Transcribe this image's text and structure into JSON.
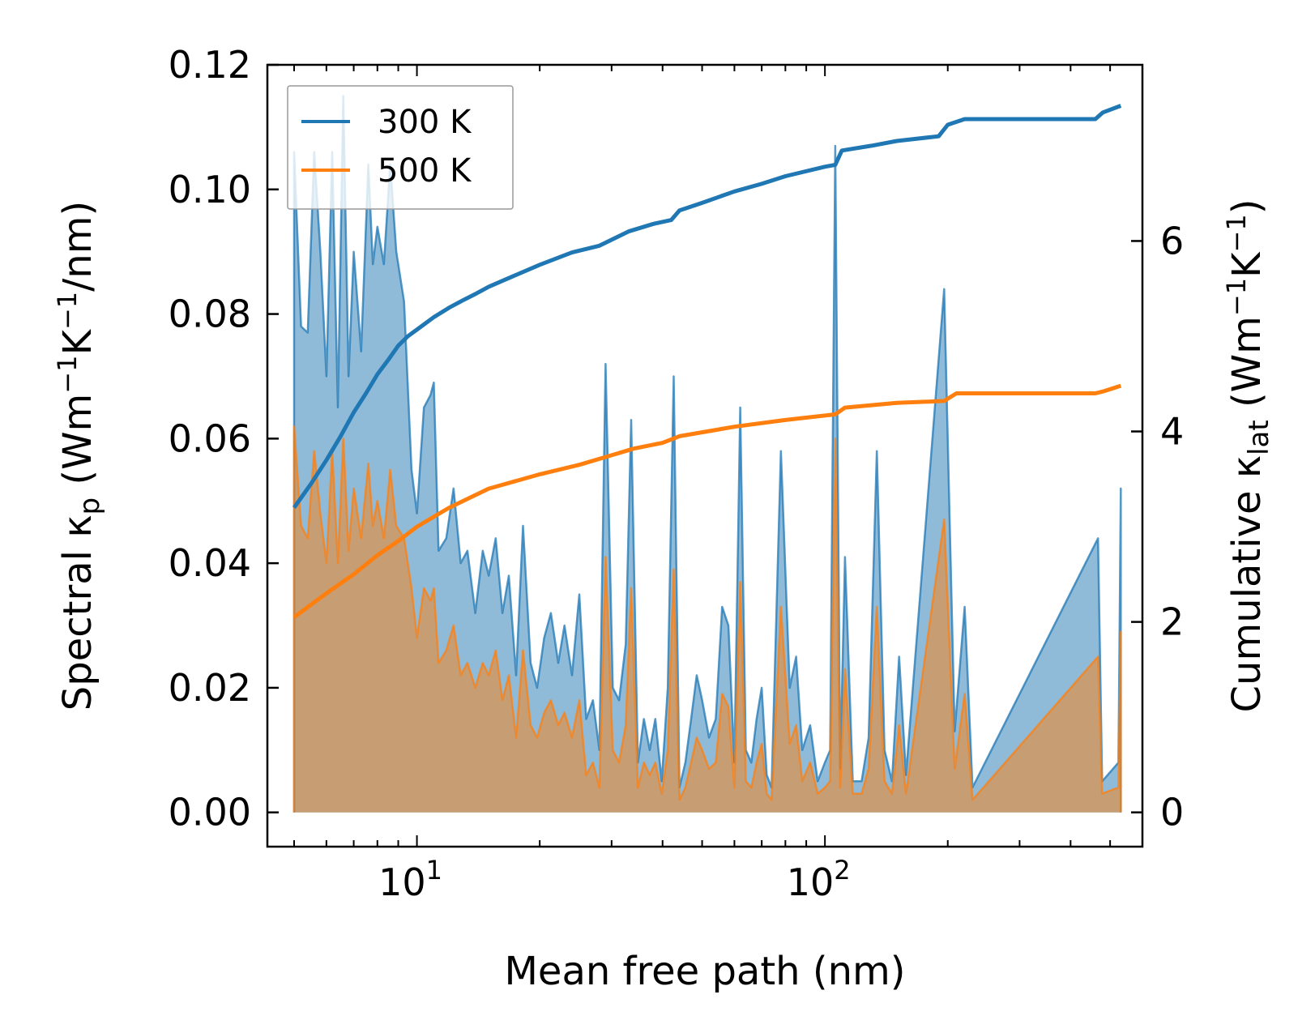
{
  "chart_data": {
    "type": "line",
    "title": "",
    "xlabel": "Mean free path (nm)",
    "xscale": "log",
    "xlim": [
      4.3,
      600
    ],
    "x_tick_labels": [
      {
        "base": "10",
        "exp": "1",
        "value": 10
      },
      {
        "base": "10",
        "exp": "2",
        "value": 100
      }
    ],
    "ylabel_left": {
      "main": "Spectral κ",
      "sub": "p",
      "unit_prefix": " (Wm",
      "sup1": "−1",
      "unit_mid": "K",
      "sup2": "−1",
      "unit_suffix": "/nm)"
    },
    "ylim_left": [
      -0.0055,
      0.12
    ],
    "y_ticks_left": [
      "0.00",
      "0.02",
      "0.04",
      "0.06",
      "0.08",
      "0.10",
      "0.12"
    ],
    "y_ticks_left_values": [
      0,
      0.02,
      0.04,
      0.06,
      0.08,
      0.1,
      0.12
    ],
    "ylabel_right": {
      "main": "Cumulative κ",
      "sub": "lat",
      "unit_prefix": " (Wm",
      "sup1": "−1",
      "unit_mid": "K",
      "sup2": "−1",
      "unit_suffix": ")"
    },
    "ylim_right": [
      -0.36,
      7.85
    ],
    "y_ticks_right": [
      "0",
      "2",
      "4",
      "6"
    ],
    "y_ticks_right_values": [
      0,
      2,
      4,
      6
    ],
    "legend": {
      "placement": "top-left",
      "entries": [
        "300 K",
        "500 K"
      ]
    },
    "colors": {
      "300 K": "#1f77b4",
      "500 K": "#ff7f0e",
      "fill_300": "#1f77b4",
      "fill_500": "#ff7f0e"
    },
    "spectral": [
      {
        "name": "300 K",
        "axis": "left",
        "points": [
          [
            5.0,
            0
          ],
          [
            5.0,
            0.106
          ],
          [
            5.2,
            0.078
          ],
          [
            5.4,
            0.077
          ],
          [
            5.6,
            0.106
          ],
          [
            5.8,
            0.09
          ],
          [
            6.0,
            0.07
          ],
          [
            6.2,
            0.106
          ],
          [
            6.4,
            0.065
          ],
          [
            6.6,
            0.115
          ],
          [
            6.8,
            0.07
          ],
          [
            7.0,
            0.09
          ],
          [
            7.3,
            0.074
          ],
          [
            7.6,
            0.104
          ],
          [
            7.8,
            0.088
          ],
          [
            8.0,
            0.094
          ],
          [
            8.3,
            0.088
          ],
          [
            8.6,
            0.104
          ],
          [
            8.9,
            0.09
          ],
          [
            9.3,
            0.082
          ],
          [
            9.7,
            0.055
          ],
          [
            10.0,
            0.048
          ],
          [
            10.4,
            0.065
          ],
          [
            10.8,
            0.067
          ],
          [
            11.0,
            0.069
          ],
          [
            11.3,
            0.042
          ],
          [
            11.8,
            0.044
          ],
          [
            12.3,
            0.052
          ],
          [
            12.8,
            0.04
          ],
          [
            13.3,
            0.042
          ],
          [
            13.9,
            0.032
          ],
          [
            14.5,
            0.042
          ],
          [
            15.0,
            0.038
          ],
          [
            15.6,
            0.044
          ],
          [
            16.2,
            0.032
          ],
          [
            16.8,
            0.038
          ],
          [
            17.5,
            0.022
          ],
          [
            18.2,
            0.046
          ],
          [
            19.0,
            0.024
          ],
          [
            19.7,
            0.02
          ],
          [
            20.5,
            0.028
          ],
          [
            21.3,
            0.032
          ],
          [
            22.2,
            0.024
          ],
          [
            23.0,
            0.03
          ],
          [
            24.0,
            0.022
          ],
          [
            25.0,
            0.035
          ],
          [
            26.0,
            0.015
          ],
          [
            27.0,
            0.018
          ],
          [
            28.0,
            0.01
          ],
          [
            29.0,
            0.072
          ],
          [
            30.2,
            0.02
          ],
          [
            31.3,
            0.018
          ],
          [
            32.5,
            0.027
          ],
          [
            33.5,
            0.063
          ],
          [
            34.8,
            0.008
          ],
          [
            36.0,
            0.015
          ],
          [
            37.2,
            0.01
          ],
          [
            38.4,
            0.015
          ],
          [
            39.8,
            0.005
          ],
          [
            41.2,
            0.02
          ],
          [
            42.6,
            0.07
          ],
          [
            44.0,
            0.004
          ],
          [
            45.5,
            0.008
          ],
          [
            47.0,
            0.015
          ],
          [
            48.5,
            0.022
          ],
          [
            50.0,
            0.018
          ],
          [
            52.0,
            0.012
          ],
          [
            54.0,
            0.015
          ],
          [
            56.0,
            0.033
          ],
          [
            58.0,
            0.03
          ],
          [
            60.0,
            0.008
          ],
          [
            62.0,
            0.065
          ],
          [
            64.0,
            0.01
          ],
          [
            66.0,
            0.008
          ],
          [
            68.0,
            0.015
          ],
          [
            70.0,
            0.02
          ],
          [
            72.0,
            0.006
          ],
          [
            74.0,
            0.004
          ],
          [
            78.0,
            0.058
          ],
          [
            82.0,
            0.02
          ],
          [
            85.0,
            0.025
          ],
          [
            88.0,
            0.01
          ],
          [
            92.0,
            0.014
          ],
          [
            96.0,
            0.005
          ],
          [
            100.0,
            0.008
          ],
          [
            103.0,
            0.01
          ],
          [
            106.0,
            0.107
          ],
          [
            109.0,
            0.007
          ],
          [
            112.0,
            0.041
          ],
          [
            117.0,
            0.005
          ],
          [
            123.0,
            0.005
          ],
          [
            128.0,
            0.012
          ],
          [
            134.0,
            0.058
          ],
          [
            140.0,
            0.01
          ],
          [
            146.0,
            0.005
          ],
          [
            152.0,
            0.025
          ],
          [
            158.0,
            0.006
          ],
          [
            196.0,
            0.084
          ],
          [
            208.0,
            0.013
          ],
          [
            220.0,
            0.033
          ],
          [
            230.0,
            0.004
          ],
          [
            467.0,
            0.044
          ],
          [
            478.0,
            0.005
          ],
          [
            524.0,
            0.008
          ],
          [
            531.0,
            0.052
          ],
          [
            531.0,
            0
          ]
        ]
      },
      {
        "name": "500 K",
        "axis": "left",
        "points": [
          [
            5.0,
            0
          ],
          [
            5.0,
            0.062
          ],
          [
            5.2,
            0.046
          ],
          [
            5.4,
            0.044
          ],
          [
            5.6,
            0.058
          ],
          [
            5.8,
            0.048
          ],
          [
            6.0,
            0.04
          ],
          [
            6.2,
            0.058
          ],
          [
            6.4,
            0.04
          ],
          [
            6.6,
            0.06
          ],
          [
            6.8,
            0.042
          ],
          [
            7.0,
            0.052
          ],
          [
            7.3,
            0.044
          ],
          [
            7.6,
            0.056
          ],
          [
            7.8,
            0.046
          ],
          [
            8.0,
            0.05
          ],
          [
            8.3,
            0.044
          ],
          [
            8.6,
            0.055
          ],
          [
            8.9,
            0.046
          ],
          [
            9.3,
            0.044
          ],
          [
            9.7,
            0.036
          ],
          [
            10.0,
            0.028
          ],
          [
            10.4,
            0.036
          ],
          [
            10.8,
            0.034
          ],
          [
            11.0,
            0.036
          ],
          [
            11.3,
            0.024
          ],
          [
            11.8,
            0.026
          ],
          [
            12.3,
            0.03
          ],
          [
            12.8,
            0.022
          ],
          [
            13.3,
            0.024
          ],
          [
            13.9,
            0.02
          ],
          [
            14.5,
            0.024
          ],
          [
            15.0,
            0.022
          ],
          [
            15.6,
            0.026
          ],
          [
            16.2,
            0.018
          ],
          [
            16.8,
            0.022
          ],
          [
            17.5,
            0.012
          ],
          [
            18.2,
            0.026
          ],
          [
            19.0,
            0.014
          ],
          [
            19.7,
            0.012
          ],
          [
            20.5,
            0.016
          ],
          [
            21.3,
            0.018
          ],
          [
            22.2,
            0.014
          ],
          [
            23.0,
            0.016
          ],
          [
            24.0,
            0.012
          ],
          [
            25.0,
            0.018
          ],
          [
            26.0,
            0.006
          ],
          [
            27.0,
            0.008
          ],
          [
            28.0,
            0.004
          ],
          [
            29.0,
            0.041
          ],
          [
            30.2,
            0.01
          ],
          [
            31.3,
            0.008
          ],
          [
            32.5,
            0.014
          ],
          [
            33.5,
            0.036
          ],
          [
            34.8,
            0.004
          ],
          [
            36.0,
            0.008
          ],
          [
            37.2,
            0.006
          ],
          [
            38.4,
            0.008
          ],
          [
            39.8,
            0.003
          ],
          [
            41.2,
            0.01
          ],
          [
            42.6,
            0.039
          ],
          [
            44.0,
            0.002
          ],
          [
            45.5,
            0.004
          ],
          [
            47.0,
            0.008
          ],
          [
            48.5,
            0.012
          ],
          [
            50.0,
            0.01
          ],
          [
            52.0,
            0.007
          ],
          [
            54.0,
            0.008
          ],
          [
            56.0,
            0.019
          ],
          [
            58.0,
            0.017
          ],
          [
            60.0,
            0.004
          ],
          [
            62.0,
            0.037
          ],
          [
            64.0,
            0.005
          ],
          [
            66.0,
            0.004
          ],
          [
            68.0,
            0.008
          ],
          [
            70.0,
            0.011
          ],
          [
            72.0,
            0.003
          ],
          [
            74.0,
            0.002
          ],
          [
            78.0,
            0.033
          ],
          [
            82.0,
            0.011
          ],
          [
            85.0,
            0.014
          ],
          [
            88.0,
            0.005
          ],
          [
            92.0,
            0.008
          ],
          [
            96.0,
            0.003
          ],
          [
            100.0,
            0.004
          ],
          [
            103.0,
            0.005
          ],
          [
            106.0,
            0.06
          ],
          [
            109.0,
            0.004
          ],
          [
            112.0,
            0.023
          ],
          [
            117.0,
            0.003
          ],
          [
            123.0,
            0.003
          ],
          [
            128.0,
            0.007
          ],
          [
            134.0,
            0.033
          ],
          [
            140.0,
            0.005
          ],
          [
            146.0,
            0.003
          ],
          [
            152.0,
            0.014
          ],
          [
            158.0,
            0.003
          ],
          [
            196.0,
            0.047
          ],
          [
            208.0,
            0.007
          ],
          [
            220.0,
            0.019
          ],
          [
            230.0,
            0.002
          ],
          [
            467.0,
            0.025
          ],
          [
            478.0,
            0.003
          ],
          [
            524.0,
            0.004
          ],
          [
            531.0,
            0.029
          ],
          [
            531.0,
            0
          ]
        ]
      }
    ],
    "cumulative": [
      {
        "name": "300 K",
        "axis": "right",
        "points": [
          [
            5.0,
            3.2
          ],
          [
            5.5,
            3.45
          ],
          [
            6.0,
            3.7
          ],
          [
            6.5,
            3.95
          ],
          [
            7.0,
            4.2
          ],
          [
            7.5,
            4.4
          ],
          [
            8.0,
            4.6
          ],
          [
            8.5,
            4.75
          ],
          [
            9.0,
            4.9
          ],
          [
            9.5,
            5.0
          ],
          [
            10.0,
            5.07
          ],
          [
            11.0,
            5.2
          ],
          [
            12.0,
            5.3
          ],
          [
            13.0,
            5.38
          ],
          [
            14.0,
            5.45
          ],
          [
            15.0,
            5.52
          ],
          [
            17.0,
            5.62
          ],
          [
            20.0,
            5.75
          ],
          [
            24.0,
            5.88
          ],
          [
            28.0,
            5.95
          ],
          [
            33.0,
            6.1
          ],
          [
            38.0,
            6.18
          ],
          [
            42.0,
            6.22
          ],
          [
            44.0,
            6.32
          ],
          [
            50.0,
            6.4
          ],
          [
            60.0,
            6.52
          ],
          [
            70.0,
            6.6
          ],
          [
            80.0,
            6.68
          ],
          [
            100.0,
            6.78
          ],
          [
            106.0,
            6.8
          ],
          [
            110.0,
            6.95
          ],
          [
            130.0,
            7.0
          ],
          [
            150.0,
            7.05
          ],
          [
            190.0,
            7.1
          ],
          [
            200.0,
            7.22
          ],
          [
            220.0,
            7.28
          ],
          [
            300.0,
            7.28
          ],
          [
            460.0,
            7.28
          ],
          [
            480.0,
            7.35
          ],
          [
            531.0,
            7.42
          ]
        ]
      },
      {
        "name": "500 K",
        "axis": "right",
        "points": [
          [
            5.0,
            2.05
          ],
          [
            6.0,
            2.3
          ],
          [
            7.0,
            2.5
          ],
          [
            8.0,
            2.7
          ],
          [
            9.0,
            2.85
          ],
          [
            10.0,
            3.0
          ],
          [
            12.0,
            3.2
          ],
          [
            15.0,
            3.4
          ],
          [
            20.0,
            3.55
          ],
          [
            25.0,
            3.65
          ],
          [
            30.0,
            3.75
          ],
          [
            34.0,
            3.82
          ],
          [
            40.0,
            3.88
          ],
          [
            44.0,
            3.95
          ],
          [
            60.0,
            4.05
          ],
          [
            80.0,
            4.12
          ],
          [
            106.0,
            4.18
          ],
          [
            112.0,
            4.25
          ],
          [
            150.0,
            4.3
          ],
          [
            196.0,
            4.32
          ],
          [
            210.0,
            4.4
          ],
          [
            300.0,
            4.4
          ],
          [
            460.0,
            4.4
          ],
          [
            480.0,
            4.42
          ],
          [
            531.0,
            4.48
          ]
        ]
      }
    ]
  }
}
